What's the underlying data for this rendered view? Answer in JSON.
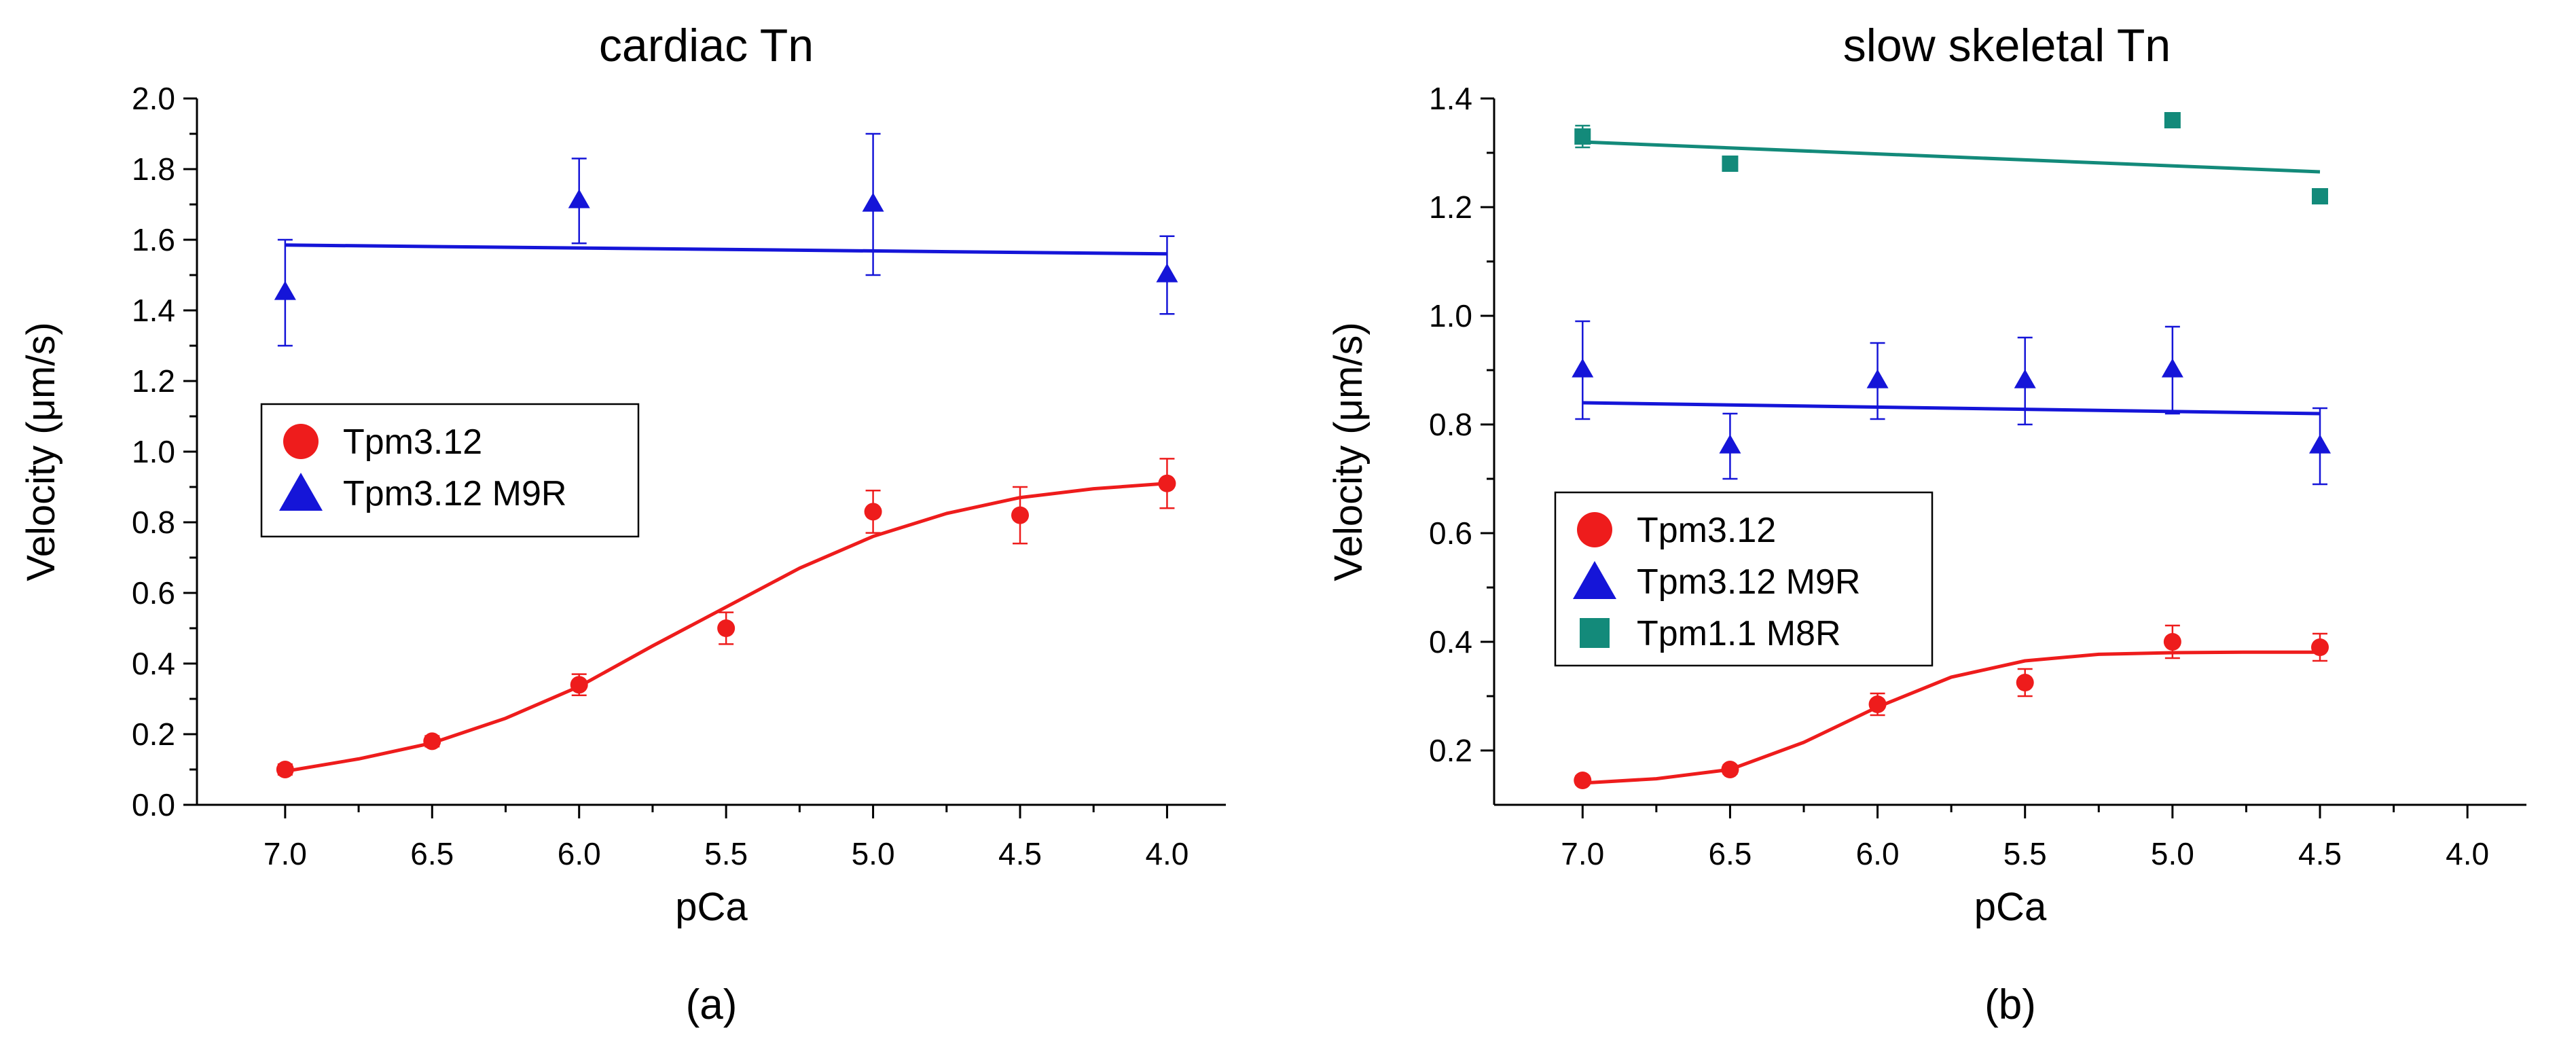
{
  "colors": {
    "red": "#ee1c1c",
    "blue": "#1515d8",
    "teal": "#138a7a",
    "axis": "#000000"
  },
  "chart_data": [
    {
      "type": "scatter",
      "panel_label": "(a)",
      "title": "cardiac Tn",
      "xlabel": "pCa",
      "ylabel": "Velocity (μm/s)",
      "xlim": [
        7.3,
        3.8
      ],
      "ylim": [
        0.0,
        2.0
      ],
      "xticks": [
        "7.0",
        "6.5",
        "6.0",
        "5.5",
        "5.0",
        "4.5",
        "4.0"
      ],
      "yticks": [
        "0.0",
        "0.2",
        "0.4",
        "0.6",
        "0.8",
        "1.0",
        "1.2",
        "1.4",
        "1.6",
        "1.8",
        "2.0"
      ],
      "legend": {
        "position": "center-left",
        "entries": [
          "Tpm3.12",
          "Tpm3.12 M9R"
        ]
      },
      "series": [
        {
          "name": "Tpm3.12",
          "color": "red",
          "marker": "circle",
          "fit": "sigmoid",
          "x": [
            7.0,
            6.5,
            6.0,
            5.5,
            5.0,
            4.5,
            4.0
          ],
          "y": [
            0.1,
            0.18,
            0.34,
            0.5,
            0.83,
            0.82,
            0.91
          ],
          "err": [
            0.015,
            0.015,
            0.03,
            0.045,
            0.06,
            0.08,
            0.07
          ],
          "fit_x": [
            7.0,
            6.75,
            6.5,
            6.25,
            6.0,
            5.75,
            5.5,
            5.25,
            5.0,
            4.75,
            4.5,
            4.25,
            4.0
          ],
          "fit_y": [
            0.095,
            0.13,
            0.175,
            0.245,
            0.335,
            0.45,
            0.56,
            0.67,
            0.76,
            0.825,
            0.87,
            0.895,
            0.91
          ]
        },
        {
          "name": "Tpm3.12 M9R",
          "color": "blue",
          "marker": "triangle",
          "fit": "linear",
          "x": [
            7.0,
            6.0,
            5.0,
            4.0
          ],
          "y": [
            1.45,
            1.71,
            1.7,
            1.5
          ],
          "err": [
            0.15,
            0.12,
            0.2,
            0.11
          ],
          "fit_x": [
            7.0,
            4.0
          ],
          "fit_y": [
            1.585,
            1.56
          ]
        }
      ]
    },
    {
      "type": "scatter",
      "panel_label": "(b)",
      "title": "slow skeletal Tn",
      "xlabel": "pCa",
      "ylabel": "Velocity (μm/s)",
      "xlim": [
        7.3,
        3.8
      ],
      "ylim": [
        0.1,
        1.4
      ],
      "xticks": [
        "7.0",
        "6.5",
        "6.0",
        "5.5",
        "5.0",
        "4.5",
        "4.0"
      ],
      "yticks": [
        "0.2",
        "0.4",
        "0.6",
        "0.8",
        "1.0",
        "1.2",
        "1.4"
      ],
      "legend": {
        "position": "lower-left",
        "entries": [
          "Tpm3.12",
          "Tpm3.12 M9R",
          "Tpm1.1 M8R"
        ]
      },
      "series": [
        {
          "name": "Tpm3.12",
          "color": "red",
          "marker": "circle",
          "fit": "sigmoid",
          "x": [
            7.0,
            6.5,
            6.0,
            5.5,
            5.0,
            4.5
          ],
          "y": [
            0.145,
            0.165,
            0.285,
            0.325,
            0.4,
            0.39
          ],
          "err": [
            0.008,
            0.008,
            0.02,
            0.025,
            0.03,
            0.025
          ],
          "fit_x": [
            7.0,
            6.75,
            6.5,
            6.25,
            6.0,
            5.75,
            5.5,
            5.25,
            5.0,
            4.75,
            4.5
          ],
          "fit_y": [
            0.14,
            0.148,
            0.165,
            0.215,
            0.28,
            0.335,
            0.365,
            0.377,
            0.38,
            0.381,
            0.381
          ]
        },
        {
          "name": "Tpm3.12 M9R",
          "color": "blue",
          "marker": "triangle",
          "fit": "linear",
          "x": [
            7.0,
            6.5,
            6.0,
            5.5,
            5.0,
            4.5
          ],
          "y": [
            0.9,
            0.76,
            0.88,
            0.88,
            0.9,
            0.76
          ],
          "err": [
            0.09,
            0.06,
            0.07,
            0.08,
            0.08,
            0.07
          ],
          "fit_x": [
            7.0,
            4.5
          ],
          "fit_y": [
            0.84,
            0.82
          ]
        },
        {
          "name": "Tpm1.1 M8R",
          "color": "teal",
          "marker": "square",
          "fit": "linear",
          "x": [
            7.0,
            6.5,
            5.0,
            4.5
          ],
          "y": [
            1.33,
            1.28,
            1.36,
            1.22
          ],
          "err": [
            0.02,
            0,
            0,
            0
          ],
          "fit_x": [
            7.0,
            4.5
          ],
          "fit_y": [
            1.32,
            1.265
          ]
        }
      ]
    }
  ]
}
